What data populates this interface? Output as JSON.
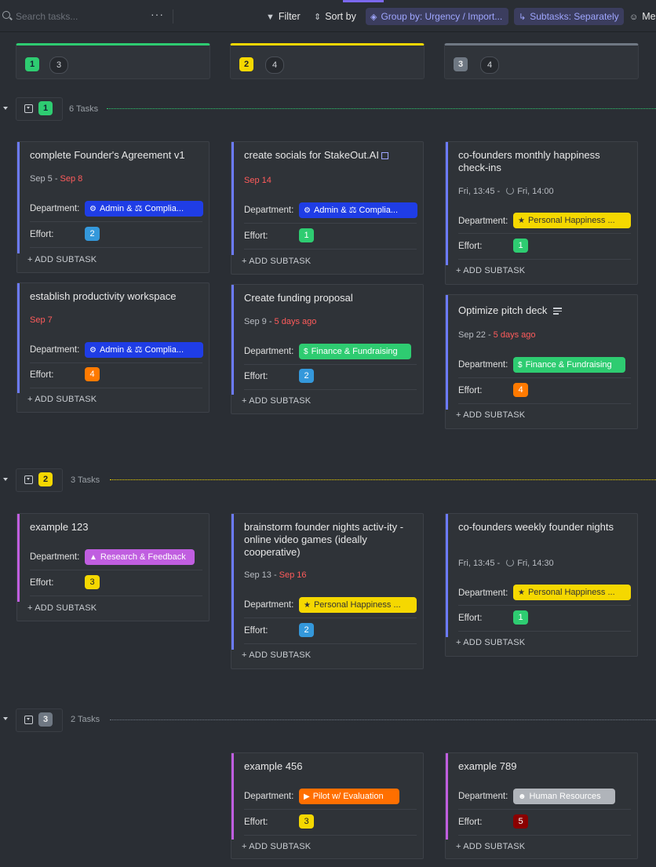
{
  "toolbar": {
    "search_placeholder": "Search tasks...",
    "more": "···",
    "filter": "Filter",
    "sort": "Sort by",
    "group_by": "Group by: Urgency / Import...",
    "subtasks": "Subtasks: Separately",
    "me": "Me"
  },
  "columns": [
    {
      "label": "1",
      "count": "3",
      "color": "#2ecc71"
    },
    {
      "label": "2",
      "count": "4",
      "color": "#f5d800"
    },
    {
      "label": "3",
      "count": "4",
      "color": "#6f7883"
    }
  ],
  "groups": [
    {
      "label": "1",
      "count_text": "6 Tasks",
      "color": "#2ecc71"
    },
    {
      "label": "2",
      "count_text": "3 Tasks",
      "color": "#f5d800"
    },
    {
      "label": "3",
      "count_text": "2 Tasks",
      "color": "#6f7883"
    }
  ],
  "common": {
    "department": "Department:",
    "effort": "Effort:",
    "add_subtask": "+ ADD SUBTASK",
    "date_sep": "-"
  },
  "cards": {
    "c1": {
      "title": "complete Founder's Agreement v1",
      "start": "Sep 5",
      "due": "Sep 8",
      "tag": "Admin & ⚖ Complia...",
      "effort": "2"
    },
    "c2": {
      "title": "establish productivity workspace",
      "due": "Sep 7",
      "tag": "Admin & ⚖ Complia...",
      "effort": "4"
    },
    "c3": {
      "title": "create socials for StakeOut.AI",
      "due": "Sep 14",
      "tag": "Admin & ⚖ Complia...",
      "effort": "1"
    },
    "c4": {
      "title": "Create funding proposal",
      "start": "Sep 9",
      "due": "5 days ago",
      "tag": "Finance & Fundraising",
      "effort": "2"
    },
    "c5": {
      "title": "co-founders monthly happiness check-ins",
      "start": "Fri, 13:45",
      "due": "Fri, 14:00",
      "tag": "Personal Happiness ...",
      "effort": "1"
    },
    "c6": {
      "title": "Optimize pitch deck",
      "start": "Sep 22",
      "due": "5 days ago",
      "tag": "Finance & Fundraising",
      "effort": "4"
    },
    "c7": {
      "title": "example 123",
      "tag": "Research & Feedback",
      "effort": "3"
    },
    "c8": {
      "title": "brainstorm founder nights activ-ity - online video games (ideally cooperative)",
      "start": "Sep 13",
      "due": "Sep 16",
      "tag": "Personal Happiness ...",
      "effort": "2"
    },
    "c9": {
      "title": "co-founders weekly founder nights",
      "start": "Fri, 13:45",
      "due": "Fri, 14:30",
      "tag": "Personal Happiness ...",
      "effort": "1"
    },
    "c10": {
      "title": "example 456",
      "tag": "Pilot w/ Evaluation",
      "effort": "3"
    },
    "c11": {
      "title": "example 789",
      "tag": "Human Resources",
      "effort": "5"
    }
  },
  "colors": {
    "admin": "#1f3de6",
    "finance": "#2ecc71",
    "happiness": "#f5d800",
    "research": "#c05ee0",
    "pilot": "#ff6f00",
    "hr": "#b0b4ba",
    "effort_1": "#2ecc71",
    "effort_2": "#3498db",
    "effort_3": "#f5d800",
    "effort_4": "#ff7a00",
    "effort_5": "#8b0000"
  }
}
